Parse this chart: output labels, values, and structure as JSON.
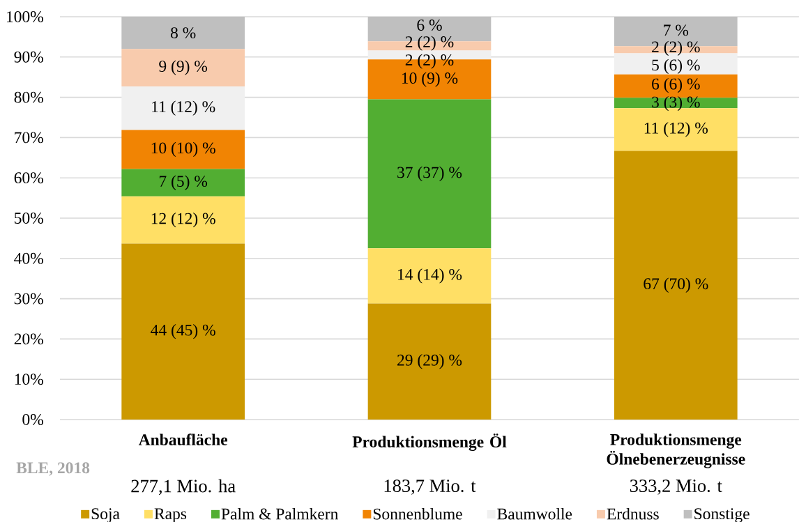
{
  "chart_data": {
    "type": "bar",
    "stacked": true,
    "categories": [
      "Anbaufläche",
      "Produktionsmenge Öl",
      "Produktionsmenge Ölnebenerzeugnisse"
    ],
    "series": [
      {
        "name": "Soja",
        "color": "#cc9900",
        "values": [
          43.7,
          28.8,
          66.7
        ],
        "value_labels": [
          "44 (45) %",
          "29 (29) %",
          "67 (70) %"
        ]
      },
      {
        "name": "Raps",
        "color": "#ffdf65",
        "values": [
          11.7,
          13.7,
          10.6
        ],
        "value_labels": [
          "12 (12) %",
          "14 (14) %",
          "11 (12) %"
        ]
      },
      {
        "name": "Palm & Palmkern",
        "color": "#52ae32",
        "values": [
          6.8,
          37.0,
          2.6
        ],
        "value_labels": [
          "7 (5) %",
          "37 (37) %",
          "3 (3) %"
        ]
      },
      {
        "name": "Sonnenblume",
        "color": "#f18403",
        "values": [
          9.7,
          9.9,
          5.8
        ],
        "value_labels": [
          "10 (10) %",
          "10 (9) %",
          "6 (6) %"
        ]
      },
      {
        "name": "Baumwolle",
        "color": "#f0f0f0",
        "values": [
          10.8,
          2.2,
          5.2
        ],
        "value_labels": [
          "11 (12) %",
          "2 (2) %",
          "5 (6) %"
        ]
      },
      {
        "name": "Erdnuss",
        "color": "#f8cbad",
        "values": [
          9.3,
          2.3,
          1.8
        ],
        "value_labels": [
          "9 (9) %",
          "2 (2) %",
          "2 (2) %"
        ]
      },
      {
        "name": "Sonstige",
        "color": "#bfbfbf",
        "values": [
          8.0,
          6.1,
          7.3
        ],
        "value_labels": [
          "8 %",
          "6 %",
          "7 %"
        ]
      }
    ],
    "ylim": [
      0,
      100
    ],
    "yticks": [
      {
        "value": 0,
        "label": "0%"
      },
      {
        "value": 10,
        "label": "10%"
      },
      {
        "value": 20,
        "label": "20%"
      },
      {
        "value": 30,
        "label": "30%"
      },
      {
        "value": 40,
        "label": "40%"
      },
      {
        "value": 50,
        "label": "50%"
      },
      {
        "value": 60,
        "label": "60%"
      },
      {
        "value": 70,
        "label": "70%"
      },
      {
        "value": 80,
        "label": "80%"
      },
      {
        "value": 90,
        "label": "90%"
      },
      {
        "value": 100,
        "label": "100%"
      }
    ],
    "grid": "y",
    "legend": "bottom",
    "annotations": [
      "BLE, 2018",
      "277,1 Mio. ha",
      "183,7 Mio. t",
      "333,2 Mio. t"
    ]
  }
}
